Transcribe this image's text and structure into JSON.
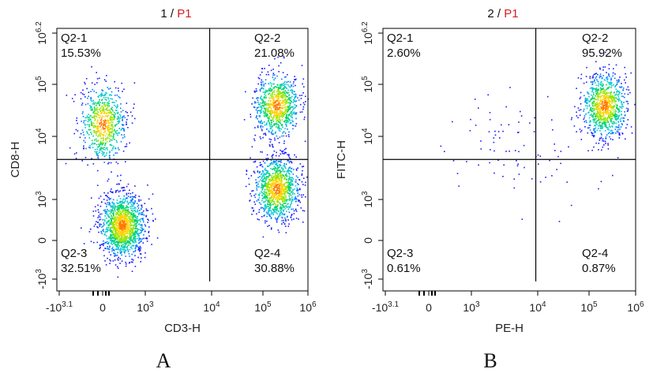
{
  "panel_labels": [
    "A",
    "B"
  ],
  "colors": {
    "gate_text": "#d42020",
    "title_text": "#111111",
    "axis": "#000000",
    "density_scale": [
      "#1a1aff",
      "#0078ff",
      "#00c8d2",
      "#00d26e",
      "#96e600",
      "#ffd200",
      "#ff7800",
      "#e60000"
    ]
  },
  "chart_data": [
    {
      "type": "scatter",
      "title_sample": "1",
      "title_separator": " / ",
      "title_gate": "P1",
      "xlabel": "CD3-H",
      "ylabel": "CD8-H",
      "x_ticks": [
        {
          "base": "-10",
          "exp": "3.1"
        },
        {
          "base": "0",
          "exp": ""
        },
        {
          "base": "10",
          "exp": "3"
        },
        {
          "base": "10",
          "exp": "4"
        },
        {
          "base": "10",
          "exp": "5"
        },
        {
          "base": "10",
          "exp": "6"
        }
      ],
      "y_ticks": [
        {
          "base": "-10",
          "exp": "3"
        },
        {
          "base": "0",
          "exp": ""
        },
        {
          "base": "10",
          "exp": "3"
        },
        {
          "base": "10",
          "exp": "4"
        },
        {
          "base": "10",
          "exp": "5"
        },
        {
          "base": "10",
          "exp": "6.2"
        }
      ],
      "gate_x": 4500,
      "gate_y": 3600,
      "quadrants": [
        {
          "name": "Q2-1",
          "percent": "15.53%",
          "position": "top-left"
        },
        {
          "name": "Q2-2",
          "percent": "21.08%",
          "position": "top-right"
        },
        {
          "name": "Q2-3",
          "percent": "32.51%",
          "position": "bottom-left"
        },
        {
          "name": "Q2-4",
          "percent": "30.88%",
          "position": "bottom-right"
        }
      ],
      "populations": [
        {
          "label": "Q2-3",
          "x_center": 300,
          "y_center": 300,
          "count": 1400
        },
        {
          "label": "Q2-1",
          "x_center": 0,
          "y_center": 18000,
          "count": 700
        },
        {
          "label": "Q2-2",
          "x_center": 50000,
          "y_center": 40000,
          "count": 850
        },
        {
          "label": "Q2-4",
          "x_center": 60000,
          "y_center": 1000,
          "count": 1100
        }
      ]
    },
    {
      "type": "scatter",
      "title_sample": "2",
      "title_separator": " / ",
      "title_gate": "P1",
      "xlabel": "PE-H",
      "ylabel": "FITC-H",
      "x_ticks": [
        {
          "base": "-10",
          "exp": "3.1"
        },
        {
          "base": "0",
          "exp": ""
        },
        {
          "base": "10",
          "exp": "3"
        },
        {
          "base": "10",
          "exp": "4"
        },
        {
          "base": "10",
          "exp": "5"
        },
        {
          "base": "10",
          "exp": "6"
        }
      ],
      "y_ticks": [
        {
          "base": "-10",
          "exp": "3"
        },
        {
          "base": "0",
          "exp": ""
        },
        {
          "base": "10",
          "exp": "3"
        },
        {
          "base": "10",
          "exp": "4"
        },
        {
          "base": "10",
          "exp": "5"
        },
        {
          "base": "10",
          "exp": "6.2"
        }
      ],
      "gate_x": 4500,
      "gate_y": 3600,
      "quadrants": [
        {
          "name": "Q2-1",
          "percent": "2.60%",
          "position": "top-left"
        },
        {
          "name": "Q2-2",
          "percent": "95.92%",
          "position": "top-right"
        },
        {
          "name": "Q2-3",
          "percent": "0.61%",
          "position": "bottom-left"
        },
        {
          "name": "Q2-4",
          "percent": "0.87%",
          "position": "bottom-right"
        }
      ],
      "populations": [
        {
          "label": "Q2-2",
          "x_center": 55000,
          "y_center": 40000,
          "count": 950
        },
        {
          "label": "Q2-1",
          "x_center": 1500,
          "y_center": 9000,
          "count": 60
        },
        {
          "label": "Q2-4",
          "x_center": 9000,
          "y_center": 1500,
          "count": 25
        }
      ]
    }
  ]
}
